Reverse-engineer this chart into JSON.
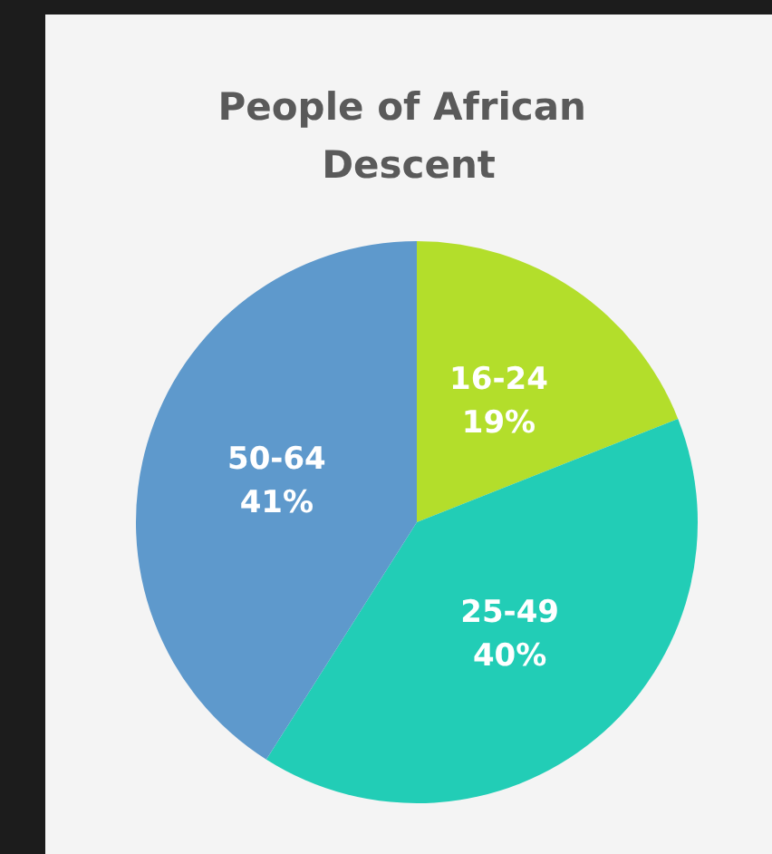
{
  "chart_data": {
    "type": "pie",
    "title": "People of African Descent",
    "categories": [
      "16-24",
      "25-49",
      "50-64"
    ],
    "values": [
      19,
      40,
      41
    ],
    "value_labels": [
      "19%",
      "40%",
      "41%"
    ],
    "colors": [
      "#b3de2b",
      "#22cdb6",
      "#5e99cc"
    ],
    "legend": false
  }
}
